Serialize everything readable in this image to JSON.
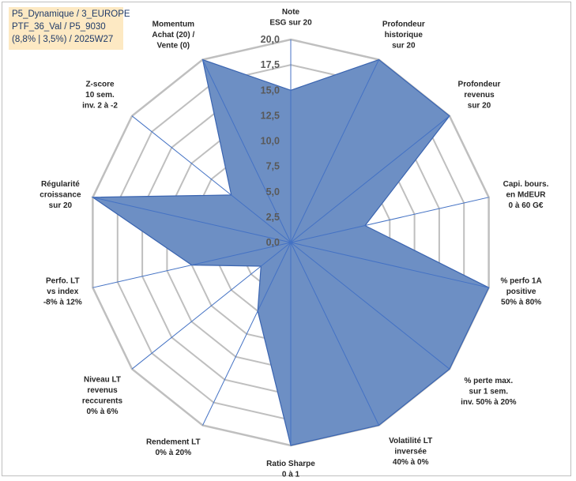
{
  "info": {
    "line1": "P5_Dynamique / 3_EUROPE",
    "line2": "PTF_36_Val / P5_9030",
    "line3": "(8,8% | 3,5%) / 2025W27"
  },
  "colors": {
    "fill": "#6d8fc4",
    "stroke": "#3a64b0",
    "grid": "#bfbfbf",
    "spoke": "#4472c4",
    "infobox_bg": "#fde9c3"
  },
  "chart_data": {
    "type": "radar",
    "rmin": 0,
    "rmax": 20,
    "tick_labels": [
      "0,0",
      "2,5",
      "5,0",
      "7,5",
      "10,0",
      "12,5",
      "15,0",
      "17,5",
      "20,0"
    ],
    "categories": [
      [
        "Note",
        "ESG sur 20"
      ],
      [
        "Profondeur",
        "historique",
        "sur 20"
      ],
      [
        "Profondeur",
        "revenus",
        "sur 20"
      ],
      [
        "Capi. bours.",
        "en MdEUR",
        "0 à 60 G€"
      ],
      [
        "% perfo 1A",
        "positive",
        "50% à 80%"
      ],
      [
        "% perte max.",
        "sur 1 sem.",
        "inv. 50% à 20%"
      ],
      [
        "Volatilité LT",
        "inversée",
        "40% à 0%"
      ],
      [
        "Ratio Sharpe",
        "0 à 1"
      ],
      [
        "Rendement LT",
        "0% à 20%"
      ],
      [
        "Niveau LT",
        "revenus",
        "reccurents",
        "0% à 6%"
      ],
      [
        "Perfo. LT",
        "vs index",
        "-8% à 12%"
      ],
      [
        "Régularité",
        "croissance",
        "sur 20"
      ],
      [
        "Z-score",
        "10 sem.",
        "inv. 2 à -2"
      ],
      [
        "Momentum",
        "Achat (20) /",
        "Vente (0)"
      ]
    ],
    "series": [
      {
        "values": [
          15.0,
          20.0,
          20.0,
          7.5,
          20.0,
          20.0,
          20.0,
          20.0,
          7.5,
          3.75,
          10.0,
          20.0,
          7.5,
          20.0
        ]
      }
    ]
  }
}
